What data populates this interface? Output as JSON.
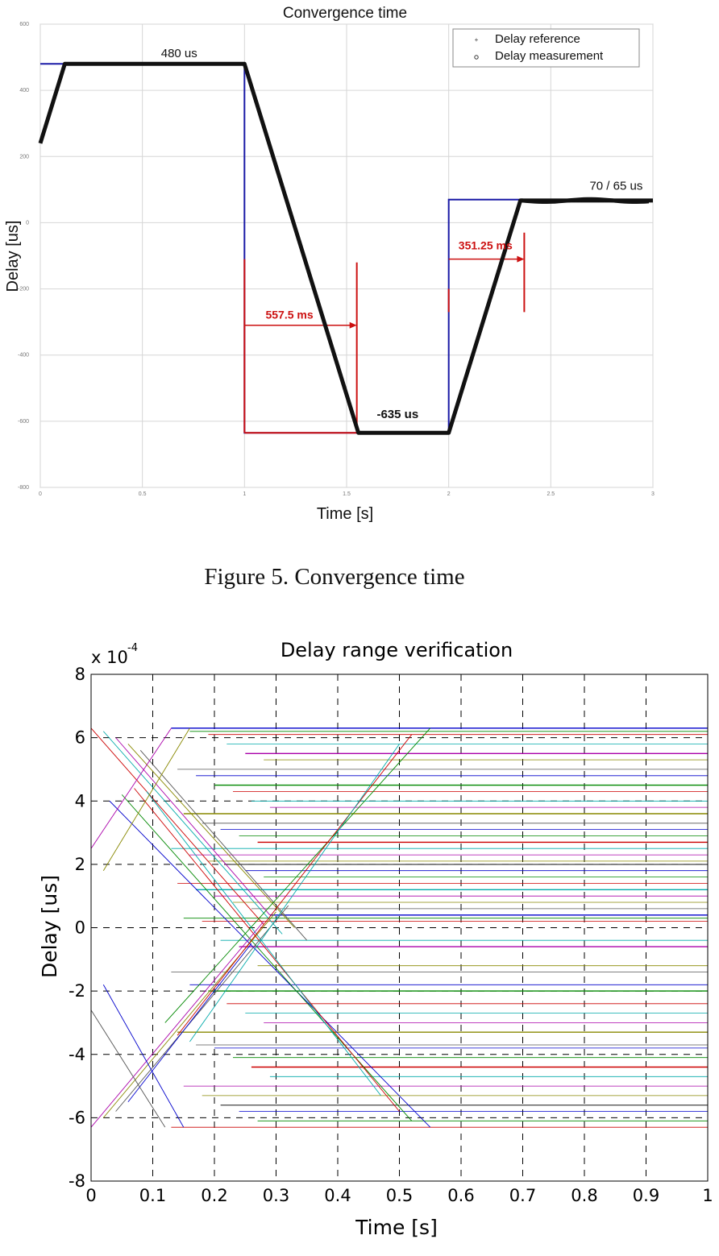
{
  "caption": "Figure 5.    Convergence time",
  "chart_data": [
    {
      "type": "line",
      "title": "Convergence time",
      "xlabel": "Time [s]",
      "ylabel": "Delay [us]",
      "xlim": [
        0,
        3
      ],
      "ylim": [
        -800,
        600
      ],
      "x_ticks": [
        0,
        0.5,
        1,
        1.5,
        2,
        2.5,
        3
      ],
      "y_ticks": [
        600,
        400,
        200,
        0,
        -200,
        -400,
        -600,
        -800
      ],
      "x_tick_labels": [
        "0",
        "0.5",
        "1",
        "1.5",
        "2",
        "2.5",
        "3"
      ],
      "y_tick_labels": [
        "600",
        "400",
        "200",
        "0",
        "-200",
        "-400",
        "-600",
        "-800"
      ],
      "grid": true,
      "legend_position": "top-right",
      "legend": [
        "Delay reference",
        "Delay measurement"
      ],
      "series": [
        {
          "name": "Delay reference",
          "color": "#1a1aa6",
          "x": [
            0,
            1,
            1,
            1.55,
            1.55,
            2,
            2,
            3
          ],
          "y": [
            480,
            480,
            -635,
            -635,
            -635,
            -635,
            70,
            70
          ]
        },
        {
          "name": "Delay measurement",
          "color": "#111111",
          "x": [
            0,
            0.12,
            1,
            1.5575,
            2.0,
            2.35125,
            3
          ],
          "y": [
            240,
            480,
            480,
            -635,
            -635,
            67,
            67
          ]
        }
      ],
      "annotations": [
        {
          "text": "480 us",
          "x": 0.68,
          "y": 500,
          "color": "#111111"
        },
        {
          "text": "-635 us",
          "x": 1.75,
          "y": -590,
          "color": "#111111"
        },
        {
          "text": "70 / 65 us",
          "x": 2.82,
          "y": 100,
          "color": "#111111"
        },
        {
          "text": "557.5 ms",
          "x": 1.22,
          "y": -290,
          "color": "#cc1111"
        },
        {
          "text": "351.25 ms",
          "x": 2.18,
          "y": -80,
          "color": "#cc1111"
        }
      ],
      "accent_color": "#cc1111"
    },
    {
      "type": "line",
      "title": "Delay range verification",
      "xlabel": "Time [s]",
      "ylabel": "Delay [us]",
      "y_scale_label": "x 10",
      "y_scale_exponent": "-4",
      "xlim": [
        0,
        1
      ],
      "ylim": [
        -8,
        8
      ],
      "x_ticks": [
        0,
        0.1,
        0.2,
        0.3,
        0.4,
        0.5,
        0.6,
        0.7,
        0.8,
        0.9,
        1
      ],
      "y_ticks": [
        8,
        6,
        4,
        2,
        0,
        -2,
        -4,
        -6,
        -8
      ],
      "x_tick_labels": [
        "0",
        "0.1",
        "0.2",
        "0.3",
        "0.4",
        "0.5",
        "0.6",
        "0.7",
        "0.8",
        "0.9",
        "1"
      ],
      "y_tick_labels": [
        "8",
        "6",
        "4",
        "2",
        "0",
        "-2",
        "-4",
        "-6",
        "-8"
      ],
      "grid": "dashed",
      "series_colors": [
        "#0000cc",
        "#008800",
        "#cc0000",
        "#00aaaa",
        "#aa00aa",
        "#888800",
        "#555555"
      ],
      "level_values": [
        6.3,
        6.2,
        6.1,
        5.8,
        5.5,
        5.3,
        5.0,
        4.8,
        4.5,
        4.3,
        4.0,
        3.8,
        3.6,
        3.3,
        3.1,
        2.9,
        2.7,
        2.5,
        2.3,
        2.1,
        2.0,
        1.8,
        1.6,
        1.4,
        1.2,
        1.0,
        0.8,
        0.6,
        0.4,
        0.3,
        0.2,
        -0.4,
        -0.6,
        -1.2,
        -1.4,
        -1.8,
        -2.0,
        -2.4,
        -2.7,
        -3.0,
        -3.3,
        -3.7,
        -3.8,
        -4.1,
        -4.4,
        -4.7,
        -5.0,
        -5.3,
        -5.6,
        -5.8,
        -6.1,
        -6.3
      ],
      "ramps": [
        {
          "x0": 0.0,
          "y0": 6.3,
          "x1": 0.28,
          "y1": 0.1
        },
        {
          "x0": 0.02,
          "y0": 6.2,
          "x1": 0.31,
          "y1": -0.2
        },
        {
          "x0": 0.04,
          "y0": 6.0,
          "x1": 0.29,
          "y1": 0.4
        },
        {
          "x0": 0.06,
          "y0": 5.8,
          "x1": 0.33,
          "y1": 0.0
        },
        {
          "x0": 0.08,
          "y0": 5.6,
          "x1": 0.35,
          "y1": -0.4
        },
        {
          "x0": 0.03,
          "y0": 4.0,
          "x1": 0.55,
          "y1": -6.3
        },
        {
          "x0": 0.05,
          "y0": 4.2,
          "x1": 0.52,
          "y1": -6.1
        },
        {
          "x0": 0.07,
          "y0": 4.4,
          "x1": 0.5,
          "y1": -5.8
        },
        {
          "x0": 0.09,
          "y0": 4.3,
          "x1": 0.47,
          "y1": -5.3
        },
        {
          "x0": 0.0,
          "y0": -6.3,
          "x1": 0.28,
          "y1": 0.2
        },
        {
          "x0": 0.02,
          "y0": -6.0,
          "x1": 0.3,
          "y1": 0.5
        },
        {
          "x0": 0.04,
          "y0": -5.8,
          "x1": 0.32,
          "y1": 0.7
        },
        {
          "x0": 0.06,
          "y0": -5.5,
          "x1": 0.26,
          "y1": -0.5
        },
        {
          "x0": 0.12,
          "y0": -3.0,
          "x1": 0.55,
          "y1": 6.3
        },
        {
          "x0": 0.14,
          "y0": -3.4,
          "x1": 0.52,
          "y1": 6.1
        },
        {
          "x0": 0.16,
          "y0": -3.6,
          "x1": 0.5,
          "y1": 5.8
        },
        {
          "x0": 0.0,
          "y0": 2.5,
          "x1": 0.13,
          "y1": 6.3
        },
        {
          "x0": 0.02,
          "y0": 1.8,
          "x1": 0.16,
          "y1": 6.3
        },
        {
          "x0": 0.0,
          "y0": -2.6,
          "x1": 0.12,
          "y1": -6.3
        },
        {
          "x0": 0.02,
          "y0": -1.8,
          "x1": 0.15,
          "y1": -6.3
        }
      ]
    }
  ]
}
